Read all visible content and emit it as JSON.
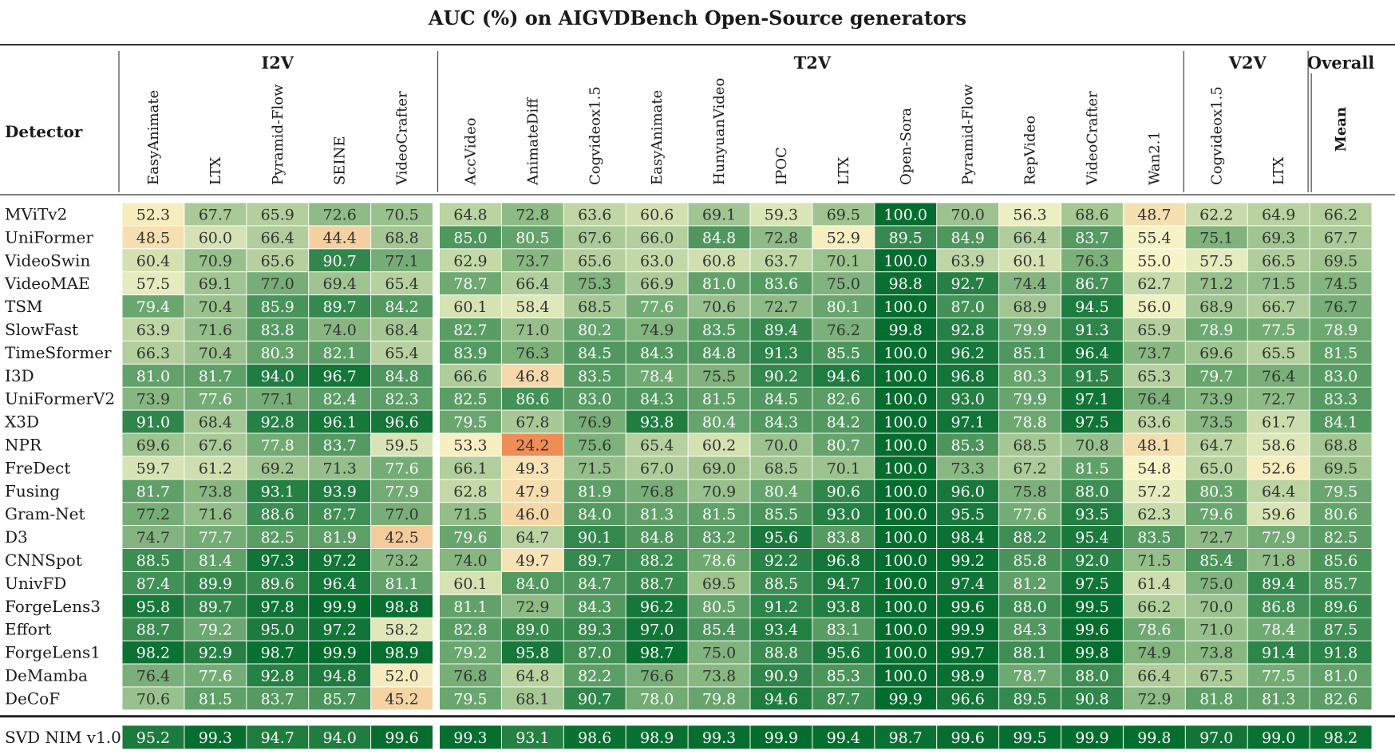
{
  "chart_data": {
    "type": "heatmap",
    "title": "AUC (%) on AIGVDBench Open-Source generators",
    "row_header": "Detector",
    "groups": [
      {
        "name": "I2V",
        "columns": [
          "EasyAnimate",
          "LTX",
          "Pyramid-Flow",
          "SEINE",
          "VideoCrafter"
        ]
      },
      {
        "name": "T2V",
        "columns": [
          "AccVideo",
          "AnimateDiff",
          "Cogvideox1.5",
          "EasyAnimate",
          "HunyuanVideo",
          "IPOC",
          "LTX",
          "Open-Sora",
          "Pyramid-Flow",
          "RepVideo",
          "VideoCrafter",
          "Wan2.1"
        ]
      },
      {
        "name": "V2V",
        "columns": [
          "Cogvideox1.5",
          "LTX"
        ]
      },
      {
        "name": "Overall",
        "columns": [
          "Mean"
        ]
      }
    ],
    "rows": [
      {
        "detector": "MViTv2",
        "values": [
          52.3,
          67.7,
          65.9,
          72.6,
          70.5,
          64.8,
          72.8,
          63.6,
          60.6,
          69.1,
          59.3,
          69.5,
          100.0,
          70.0,
          56.3,
          68.6,
          48.7,
          62.2,
          64.9,
          66.2
        ]
      },
      {
        "detector": "UniFormer",
        "values": [
          48.5,
          60.0,
          66.4,
          44.4,
          68.8,
          85.0,
          80.5,
          67.6,
          66.0,
          84.8,
          72.8,
          52.9,
          89.5,
          84.9,
          66.4,
          83.7,
          55.4,
          75.1,
          69.3,
          67.7
        ]
      },
      {
        "detector": "VideoSwin",
        "values": [
          60.4,
          70.9,
          65.6,
          90.7,
          77.1,
          62.9,
          73.7,
          65.6,
          63.0,
          60.8,
          63.7,
          70.1,
          100.0,
          63.9,
          60.1,
          76.3,
          55.0,
          57.5,
          66.5,
          69.5
        ]
      },
      {
        "detector": "VideoMAE",
        "values": [
          57.5,
          69.1,
          77.0,
          69.4,
          65.4,
          78.7,
          66.4,
          75.3,
          66.9,
          81.0,
          83.6,
          75.0,
          98.8,
          92.7,
          74.4,
          86.7,
          62.7,
          71.2,
          71.5,
          74.5
        ]
      },
      {
        "detector": "TSM",
        "values": [
          79.4,
          70.4,
          85.9,
          89.7,
          84.2,
          60.1,
          58.4,
          68.5,
          77.6,
          70.6,
          72.7,
          80.1,
          100.0,
          87.0,
          68.9,
          94.5,
          56.0,
          68.9,
          66.7,
          76.7
        ]
      },
      {
        "detector": "SlowFast",
        "values": [
          63.9,
          71.6,
          83.8,
          74.0,
          68.4,
          82.7,
          71.0,
          80.2,
          74.9,
          83.5,
          89.4,
          76.2,
          99.8,
          92.8,
          79.9,
          91.3,
          65.9,
          78.9,
          77.5,
          78.9
        ]
      },
      {
        "detector": "TimeSformer",
        "values": [
          66.3,
          70.4,
          80.3,
          82.1,
          65.4,
          83.9,
          76.3,
          84.5,
          84.3,
          84.8,
          91.3,
          85.5,
          100.0,
          96.2,
          85.1,
          96.4,
          73.7,
          69.6,
          65.5,
          81.5
        ]
      },
      {
        "detector": "I3D",
        "values": [
          81.0,
          81.7,
          94.0,
          96.7,
          84.8,
          66.6,
          46.8,
          83.5,
          78.4,
          75.5,
          90.2,
          94.6,
          100.0,
          96.8,
          80.3,
          91.5,
          65.3,
          79.7,
          76.4,
          83.0
        ]
      },
      {
        "detector": "UniFormerV2",
        "values": [
          73.9,
          77.6,
          77.1,
          82.4,
          82.3,
          82.5,
          86.6,
          83.0,
          84.3,
          81.5,
          84.5,
          82.6,
          100.0,
          93.0,
          79.9,
          97.1,
          76.4,
          73.9,
          72.7,
          83.3
        ]
      },
      {
        "detector": "X3D",
        "values": [
          91.0,
          68.4,
          92.8,
          96.1,
          96.6,
          79.5,
          67.8,
          76.9,
          93.8,
          80.4,
          84.3,
          84.2,
          100.0,
          97.1,
          78.8,
          97.5,
          63.6,
          73.5,
          61.7,
          84.1
        ]
      },
      {
        "detector": "NPR",
        "values": [
          69.6,
          67.6,
          77.8,
          83.7,
          59.5,
          53.3,
          24.2,
          75.6,
          65.4,
          60.2,
          70.0,
          80.7,
          100.0,
          85.3,
          68.5,
          70.8,
          48.1,
          64.7,
          58.6,
          68.8
        ]
      },
      {
        "detector": "FreDect",
        "values": [
          59.7,
          61.2,
          69.2,
          71.3,
          77.6,
          66.1,
          49.3,
          71.5,
          67.0,
          69.0,
          68.5,
          70.1,
          100.0,
          73.3,
          67.2,
          81.5,
          54.8,
          65.0,
          52.6,
          69.5
        ]
      },
      {
        "detector": "Fusing",
        "values": [
          81.7,
          73.8,
          93.1,
          93.9,
          77.9,
          62.8,
          47.9,
          81.9,
          76.8,
          70.9,
          80.4,
          90.6,
          100.0,
          96.0,
          75.8,
          88.0,
          57.2,
          80.3,
          64.4,
          79.5
        ]
      },
      {
        "detector": "Gram-Net",
        "values": [
          77.2,
          71.6,
          88.6,
          87.7,
          77.0,
          71.5,
          46.0,
          84.0,
          81.3,
          81.5,
          85.5,
          93.0,
          100.0,
          95.5,
          77.6,
          93.5,
          62.3,
          79.6,
          59.6,
          80.6
        ]
      },
      {
        "detector": "D3",
        "values": [
          74.7,
          77.7,
          82.5,
          81.9,
          42.5,
          79.6,
          64.7,
          90.1,
          84.8,
          83.2,
          95.6,
          83.8,
          100.0,
          98.4,
          88.2,
          95.4,
          83.5,
          72.7,
          77.9,
          82.5
        ]
      },
      {
        "detector": "CNNSpot",
        "values": [
          88.5,
          81.4,
          97.3,
          97.2,
          73.2,
          74.0,
          49.7,
          89.7,
          88.2,
          78.6,
          92.2,
          96.8,
          100.0,
          99.2,
          85.8,
          92.0,
          71.5,
          85.4,
          71.8,
          85.6
        ]
      },
      {
        "detector": "UnivFD",
        "values": [
          87.4,
          89.9,
          89.6,
          96.4,
          81.1,
          60.1,
          84.0,
          84.7,
          88.7,
          69.5,
          88.5,
          94.7,
          100.0,
          97.4,
          81.2,
          97.5,
          61.4,
          75.0,
          89.4,
          85.7
        ]
      },
      {
        "detector": "ForgeLens3",
        "values": [
          95.8,
          89.7,
          97.8,
          99.9,
          98.8,
          81.1,
          72.9,
          84.3,
          96.2,
          80.5,
          91.2,
          93.8,
          100.0,
          99.6,
          88.0,
          99.5,
          66.2,
          70.0,
          86.8,
          89.6
        ]
      },
      {
        "detector": "Effort",
        "values": [
          88.7,
          79.2,
          95.0,
          97.2,
          58.2,
          82.8,
          89.0,
          89.3,
          97.0,
          85.4,
          93.4,
          83.1,
          100.0,
          99.9,
          84.3,
          99.6,
          78.6,
          71.0,
          78.4,
          87.5
        ]
      },
      {
        "detector": "ForgeLens1",
        "values": [
          98.2,
          92.9,
          98.7,
          99.9,
          98.9,
          79.2,
          95.8,
          87.0,
          98.7,
          75.0,
          88.8,
          95.6,
          100.0,
          99.7,
          88.1,
          99.8,
          74.9,
          73.8,
          91.4,
          91.8
        ]
      },
      {
        "detector": "DeMamba",
        "values": [
          76.4,
          77.6,
          92.8,
          94.8,
          52.0,
          76.8,
          64.8,
          82.2,
          76.6,
          73.8,
          90.9,
          85.3,
          100.0,
          98.9,
          78.7,
          88.0,
          66.4,
          67.5,
          77.5,
          81.0
        ]
      },
      {
        "detector": "DeCoF",
        "values": [
          70.6,
          81.5,
          83.7,
          85.7,
          45.2,
          79.5,
          68.1,
          90.7,
          78.0,
          79.8,
          94.6,
          87.7,
          99.9,
          96.6,
          89.5,
          90.8,
          72.9,
          81.8,
          81.3,
          82.6
        ]
      }
    ],
    "highlight_row": {
      "detector": "SVD NIM v1.0",
      "values": [
        95.2,
        99.3,
        94.7,
        94.0,
        99.6,
        99.3,
        93.1,
        98.6,
        98.9,
        99.3,
        99.9,
        99.4,
        98.7,
        99.6,
        99.5,
        99.9,
        99.8,
        97.0,
        99.0,
        98.2
      ]
    },
    "color_scale": {
      "low": "#f08c55",
      "mid": "#f7f5c8",
      "high": "#036d2e"
    }
  }
}
